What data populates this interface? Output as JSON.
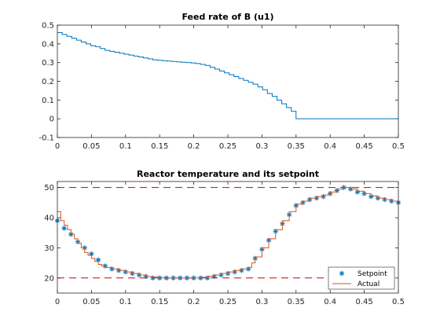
{
  "colors": {
    "series_blue": "#0072BD",
    "series_orange": "#D95319",
    "limit_red": "#CC0000",
    "axes": "#262626"
  },
  "chart_data": [
    {
      "type": "line",
      "step": true,
      "title": "Feed rate of B (u1)",
      "xlabel": "",
      "ylabel": "",
      "xlim": [
        0,
        0.5
      ],
      "ylim": [
        -0.1,
        0.5
      ],
      "xticks": [
        0,
        0.05,
        0.1,
        0.15,
        0.2,
        0.25,
        0.3,
        0.35,
        0.4,
        0.45,
        0.5
      ],
      "yticks": [
        -0.1,
        0,
        0.1,
        0.2,
        0.3,
        0.4,
        0.5
      ],
      "xtick_labels": [
        "0",
        "0.05",
        "0.1",
        "0.15",
        "0.2",
        "0.25",
        "0.3",
        "0.35",
        "0.4",
        "0.45",
        "0.5"
      ],
      "ytick_labels": [
        "-0.1",
        "0",
        "0.1",
        "0.2",
        "0.3",
        "0.4",
        "0.5"
      ],
      "series": [
        {
          "color": "#0072BD",
          "x": [
            0,
            0.007,
            0.014,
            0.021,
            0.028,
            0.035,
            0.042,
            0.049,
            0.056,
            0.063,
            0.07,
            0.077,
            0.084,
            0.091,
            0.098,
            0.105,
            0.112,
            0.119,
            0.126,
            0.133,
            0.14,
            0.147,
            0.154,
            0.161,
            0.168,
            0.175,
            0.182,
            0.189,
            0.196,
            0.203,
            0.21,
            0.217,
            0.224,
            0.231,
            0.238,
            0.245,
            0.252,
            0.259,
            0.266,
            0.273,
            0.28,
            0.287,
            0.294,
            0.301,
            0.308,
            0.315,
            0.322,
            0.329,
            0.336,
            0.343,
            0.35,
            0.5
          ],
          "y": [
            0.46,
            0.45,
            0.44,
            0.43,
            0.42,
            0.41,
            0.4,
            0.39,
            0.385,
            0.375,
            0.365,
            0.36,
            0.355,
            0.35,
            0.345,
            0.34,
            0.335,
            0.33,
            0.325,
            0.32,
            0.315,
            0.312,
            0.31,
            0.308,
            0.306,
            0.304,
            0.302,
            0.3,
            0.298,
            0.295,
            0.29,
            0.285,
            0.275,
            0.265,
            0.255,
            0.245,
            0.235,
            0.225,
            0.215,
            0.205,
            0.195,
            0.185,
            0.17,
            0.155,
            0.135,
            0.12,
            0.1,
            0.08,
            0.06,
            0.04,
            0.0,
            0.0
          ]
        }
      ]
    },
    {
      "type": "line",
      "title": "Reactor temperature and its setpoint",
      "xlabel": "",
      "ylabel": "",
      "xlim": [
        0,
        0.5
      ],
      "ylim": [
        15,
        52
      ],
      "xticks": [
        0,
        0.05,
        0.1,
        0.15,
        0.2,
        0.25,
        0.3,
        0.35,
        0.4,
        0.45,
        0.5
      ],
      "yticks": [
        20,
        30,
        40,
        50
      ],
      "xtick_labels": [
        "0",
        "0.05",
        "0.1",
        "0.15",
        "0.2",
        "0.25",
        "0.3",
        "0.35",
        "0.4",
        "0.45",
        "0.5"
      ],
      "ytick_labels": [
        "20",
        "30",
        "40",
        "50"
      ],
      "limits": [
        20,
        50
      ],
      "legend": {
        "position": "bottom-right"
      },
      "series": [
        {
          "name": "Setpoint",
          "marker": "asterisk",
          "color": "#0072BD",
          "x": [
            0,
            0.01,
            0.02,
            0.03,
            0.04,
            0.05,
            0.06,
            0.07,
            0.08,
            0.09,
            0.1,
            0.11,
            0.12,
            0.13,
            0.14,
            0.15,
            0.16,
            0.17,
            0.18,
            0.19,
            0.2,
            0.21,
            0.22,
            0.23,
            0.24,
            0.25,
            0.26,
            0.27,
            0.28,
            0.29,
            0.3,
            0.31,
            0.32,
            0.33,
            0.34,
            0.35,
            0.36,
            0.37,
            0.38,
            0.39,
            0.4,
            0.41,
            0.42,
            0.43,
            0.44,
            0.45,
            0.46,
            0.47,
            0.48,
            0.49,
            0.5
          ],
          "y": [
            39,
            36.5,
            34.5,
            32,
            30,
            28,
            26,
            24,
            23,
            22.5,
            22,
            21.5,
            21,
            20.5,
            20,
            20,
            20,
            20,
            20,
            20,
            20,
            20,
            20,
            20.5,
            21,
            21.5,
            22,
            22.5,
            23,
            26.5,
            29.5,
            32.5,
            35.5,
            38,
            41,
            44,
            45,
            46,
            46.5,
            47,
            48,
            49,
            50,
            49.5,
            48.5,
            48,
            47,
            46.5,
            46,
            45.5,
            45
          ]
        },
        {
          "name": "Actual",
          "color": "#D95319",
          "x": [
            0,
            0.005,
            0.01,
            0.015,
            0.02,
            0.025,
            0.03,
            0.035,
            0.04,
            0.045,
            0.05,
            0.055,
            0.06,
            0.065,
            0.07,
            0.08,
            0.09,
            0.1,
            0.11,
            0.12,
            0.13,
            0.14,
            0.15,
            0.16,
            0.17,
            0.18,
            0.19,
            0.2,
            0.21,
            0.22,
            0.23,
            0.24,
            0.25,
            0.26,
            0.27,
            0.28,
            0.285,
            0.29,
            0.3,
            0.31,
            0.32,
            0.33,
            0.34,
            0.35,
            0.36,
            0.37,
            0.38,
            0.39,
            0.4,
            0.41,
            0.42,
            0.43,
            0.44,
            0.45,
            0.46,
            0.47,
            0.48,
            0.49,
            0.5
          ],
          "y": [
            42,
            39,
            37.5,
            36,
            34.5,
            33,
            31.5,
            30,
            28.5,
            27.5,
            26.5,
            25.5,
            24.5,
            24,
            23.5,
            23,
            22.5,
            22,
            21.5,
            21,
            20.5,
            20.3,
            20.1,
            20,
            20,
            20,
            20,
            20,
            20.2,
            20.6,
            21,
            21.5,
            22,
            22.5,
            23,
            23.5,
            25,
            27,
            30,
            33,
            36,
            39,
            42,
            44.5,
            45.5,
            46.5,
            47,
            47.5,
            48.5,
            49.5,
            50,
            49.5,
            48.8,
            48,
            47.2,
            46.5,
            46,
            45.5,
            45
          ]
        }
      ]
    }
  ]
}
